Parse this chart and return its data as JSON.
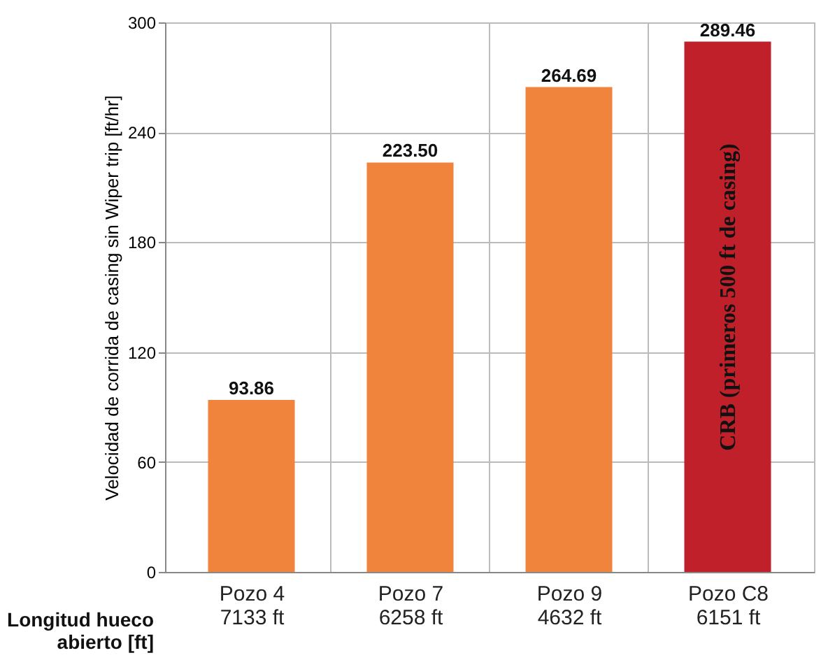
{
  "chart_data": {
    "type": "bar",
    "ylabel": "Velocidad de corrida de casing  sin Wiper trip [ft/hr]",
    "categories": [
      "Pozo 4\n7133 ft",
      "Pozo 7\n6258 ft",
      "Pozo 9\n4632 ft",
      "Pozo C8\n6151 ft"
    ],
    "values": [
      93.86,
      223.5,
      264.69,
      289.46
    ],
    "colors": [
      "#f0843c",
      "#f0843c",
      "#f0843c",
      "#c0202a"
    ],
    "value_labels": [
      "93.86",
      "223.50",
      "264.69",
      "289.46"
    ],
    "ylim": [
      0,
      300
    ],
    "yticks": [
      0,
      60,
      120,
      180,
      240,
      300
    ],
    "grid": true,
    "annotations": [
      "CRB (primeros 500 ft de casing)",
      "Longitud hueco\nabierto [ft]"
    ]
  }
}
